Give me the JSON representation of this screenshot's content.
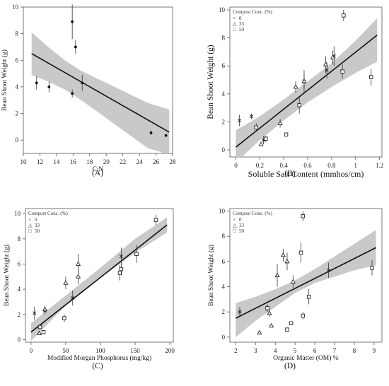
{
  "chart_data": [
    {
      "id": "A",
      "type": "scatter",
      "panel_label": "(A)",
      "xlabel": "C:N",
      "ylabel": "Bean Shoot Weight (g)",
      "xlim": [
        10,
        28
      ],
      "ylim": [
        -1,
        10
      ],
      "xticks": [
        10,
        12,
        14,
        16,
        18,
        20,
        22,
        24,
        26,
        28
      ],
      "yticks": [
        0,
        2,
        4,
        6,
        8,
        10
      ],
      "legend_title": "",
      "legend_entries": [],
      "series": [
        {
          "marker": "dot",
          "points": [
            {
              "x": 11.6,
              "y": 4.3,
              "err": 0.5
            },
            {
              "x": 13.1,
              "y": 4.0,
              "err": 0.4
            },
            {
              "x": 15.9,
              "y": 3.5,
              "err": 0.3
            },
            {
              "x": 15.9,
              "y": 8.9,
              "err": 1.3
            },
            {
              "x": 16.3,
              "y": 7.0,
              "err": 0.5
            },
            {
              "x": 17.1,
              "y": 4.3,
              "err": 0.6
            },
            {
              "x": 25.4,
              "y": 0.55,
              "err": 0.15
            },
            {
              "x": 27.2,
              "y": 0.35,
              "err": 0.1
            }
          ]
        }
      ],
      "fit": {
        "x": [
          11,
          27.6
        ],
        "y": [
          6.5,
          0.6
        ]
      },
      "band": {
        "x": [
          11,
          13,
          15,
          17,
          19,
          21,
          23,
          25,
          27.6
        ],
        "lower": [
          4.9,
          4.4,
          3.8,
          3.0,
          2.1,
          1.2,
          0.3,
          -0.6,
          -1.1
        ],
        "upper": [
          8.1,
          7.0,
          6.0,
          5.2,
          4.6,
          4.0,
          3.4,
          2.8,
          2.3
        ]
      }
    },
    {
      "id": "B",
      "type": "scatter",
      "panel_label": "(B)",
      "xlabel": "Soluble Salt Content (mmhos/cm)",
      "ylabel": "Bean Shoot Weight (g)",
      "xlim": [
        -0.05,
        1.22
      ],
      "ylim": [
        -0.5,
        10.2
      ],
      "xticks": [
        0,
        0.2,
        0.4,
        0.6,
        0.8,
        1,
        1.2
      ],
      "yticks": [
        0,
        2,
        4,
        6,
        8,
        10
      ],
      "legend_title": "Compost Conc. (%)",
      "legend_entries": [
        {
          "symbol": "×",
          "label": "0"
        },
        {
          "symbol": "△",
          "label": "33"
        },
        {
          "symbol": "□",
          "label": "50"
        }
      ],
      "series": [
        {
          "name": "0",
          "marker": "x",
          "points": [
            {
              "x": 0.03,
              "y": 2.1,
              "err": 0.4
            },
            {
              "x": 0.13,
              "y": 2.4,
              "err": 0.2
            },
            {
              "x": 0.23,
              "y": 0.7,
              "err": 0.3
            },
            {
              "x": 0.57,
              "y": 4.9,
              "err": 0.8
            },
            {
              "x": 0.76,
              "y": 5.7,
              "err": 0.6
            },
            {
              "x": 0.82,
              "y": 6.7,
              "err": 0.7
            }
          ]
        },
        {
          "name": "33",
          "marker": "triangle",
          "points": [
            {
              "x": 0.21,
              "y": 0.4,
              "err": 0.1
            },
            {
              "x": 0.37,
              "y": 1.9,
              "err": 0.3
            },
            {
              "x": 0.5,
              "y": 4.5,
              "err": 0.4
            },
            {
              "x": 0.57,
              "y": 4.9,
              "err": 0.5
            },
            {
              "x": 0.75,
              "y": 6.1,
              "err": 0.6
            },
            {
              "x": 0.81,
              "y": 6.6,
              "err": 0.5
            }
          ]
        },
        {
          "name": "50",
          "marker": "square",
          "points": [
            {
              "x": 0.17,
              "y": 1.6,
              "err": 0.3
            },
            {
              "x": 0.25,
              "y": 0.8,
              "err": 0.2
            },
            {
              "x": 0.42,
              "y": 1.1,
              "err": 0.1
            },
            {
              "x": 0.53,
              "y": 3.2,
              "err": 0.6
            },
            {
              "x": 0.89,
              "y": 5.6,
              "err": 0.5
            },
            {
              "x": 0.9,
              "y": 9.6,
              "err": 0.4
            },
            {
              "x": 1.13,
              "y": 5.2,
              "err": 0.6
            }
          ]
        }
      ],
      "fit": {
        "x": [
          0,
          1.18
        ],
        "y": [
          0.2,
          8.2
        ]
      },
      "band": {
        "x": [
          0,
          0.2,
          0.4,
          0.6,
          0.8,
          1.0,
          1.18
        ],
        "lower": [
          -0.9,
          0.7,
          2.1,
          3.4,
          4.5,
          5.5,
          6.3
        ],
        "upper": [
          1.4,
          2.4,
          3.6,
          4.9,
          6.2,
          7.8,
          9.4
        ]
      }
    },
    {
      "id": "C",
      "type": "scatter",
      "panel_label": "(C)",
      "xlabel": "Modified Morgan Phosphorus (mg/kg)",
      "ylabel": "Bean Shoot Weight (g)",
      "xlim": [
        -8,
        205
      ],
      "ylim": [
        -0.2,
        10.4
      ],
      "xticks": [
        0,
        50,
        100,
        150,
        200
      ],
      "yticks": [
        0,
        2,
        4,
        6,
        8,
        10
      ],
      "legend_title": "Compost Conc. (%)",
      "legend_entries": [
        {
          "symbol": "×",
          "label": "0"
        },
        {
          "symbol": "△",
          "label": "33"
        },
        {
          "symbol": "□",
          "label": "50"
        }
      ],
      "series": [
        {
          "name": "0",
          "marker": "x",
          "points": [
            {
              "x": 5,
              "y": 2.1,
              "err": 0.5
            },
            {
              "x": 20,
              "y": 2.3,
              "err": 0.3
            },
            {
              "x": 60,
              "y": 3.3,
              "err": 0.6
            },
            {
              "x": 130,
              "y": 6.6,
              "err": 0.7
            }
          ]
        },
        {
          "name": "33",
          "marker": "triangle",
          "points": [
            {
              "x": 12,
              "y": 0.5,
              "err": 0.1
            },
            {
              "x": 20,
              "y": 2.4,
              "err": 0.3
            },
            {
              "x": 50,
              "y": 4.5,
              "err": 0.5
            },
            {
              "x": 68,
              "y": 5.0,
              "err": 0.6
            },
            {
              "x": 68,
              "y": 6.0,
              "err": 0.8
            }
          ]
        },
        {
          "name": "50",
          "marker": "square",
          "points": [
            {
              "x": 13,
              "y": 1.0,
              "err": 0.2
            },
            {
              "x": 18,
              "y": 0.6,
              "err": 0.1
            },
            {
              "x": 48,
              "y": 1.7,
              "err": 0.3
            },
            {
              "x": 128,
              "y": 5.3,
              "err": 0.6
            },
            {
              "x": 130,
              "y": 5.6,
              "err": 0.5
            },
            {
              "x": 152,
              "y": 6.8,
              "err": 0.7
            },
            {
              "x": 180,
              "y": 9.5,
              "err": 0.4
            }
          ]
        }
      ],
      "fit": {
        "x": [
          0,
          196
        ],
        "y": [
          0.6,
          9.1
        ]
      },
      "band": {
        "x": [
          0,
          50,
          100,
          150,
          196
        ],
        "lower": [
          -0.1,
          2.7,
          4.9,
          6.9,
          8.5
        ],
        "upper": [
          1.3,
          3.5,
          5.7,
          8.0,
          9.7
        ]
      }
    },
    {
      "id": "D",
      "type": "scatter",
      "panel_label": "(D)",
      "xlabel": "Organic Matter (OM) %",
      "ylabel": "Bean Shoot Weight (g)",
      "xlim": [
        1.7,
        9.4
      ],
      "ylim": [
        -0.4,
        10.2
      ],
      "xticks": [
        2,
        3,
        4,
        5,
        6,
        7,
        8,
        9
      ],
      "yticks": [
        0,
        2,
        4,
        6,
        8,
        10
      ],
      "legend_title": "Compost Conc. (%)",
      "legend_entries": [
        {
          "symbol": "×",
          "label": "0"
        },
        {
          "symbol": "△",
          "label": "33"
        },
        {
          "symbol": "□",
          "label": "50"
        }
      ],
      "series": [
        {
          "name": "0",
          "marker": "x",
          "points": [
            {
              "x": 2.2,
              "y": 2.0,
              "err": 0.4
            },
            {
              "x": 3.6,
              "y": 2.3,
              "err": 0.3
            },
            {
              "x": 6.7,
              "y": 5.3,
              "err": 0.6
            }
          ]
        },
        {
          "name": "33",
          "marker": "triangle",
          "points": [
            {
              "x": 3.2,
              "y": 0.35,
              "err": 0.05
            },
            {
              "x": 3.7,
              "y": 1.9,
              "err": 0.3
            },
            {
              "x": 3.8,
              "y": 0.9,
              "err": 0.1
            },
            {
              "x": 4.1,
              "y": 4.9,
              "err": 0.9
            },
            {
              "x": 4.4,
              "y": 6.5,
              "err": 0.5
            },
            {
              "x": 4.6,
              "y": 6.0,
              "err": 0.7
            },
            {
              "x": 4.9,
              "y": 4.4,
              "err": 0.5
            }
          ]
        },
        {
          "name": "50",
          "marker": "square",
          "points": [
            {
              "x": 3.6,
              "y": 2.3,
              "err": 0.3
            },
            {
              "x": 4.6,
              "y": 0.6,
              "err": 0.1
            },
            {
              "x": 4.8,
              "y": 1.1,
              "err": 0.1
            },
            {
              "x": 5.3,
              "y": 6.7,
              "err": 0.8
            },
            {
              "x": 5.4,
              "y": 9.6,
              "err": 0.4
            },
            {
              "x": 5.4,
              "y": 1.7,
              "err": 0.3
            },
            {
              "x": 5.7,
              "y": 3.2,
              "err": 0.6
            },
            {
              "x": 8.9,
              "y": 5.5,
              "err": 0.6
            }
          ]
        }
      ],
      "fit": {
        "x": [
          2,
          9.1
        ],
        "y": [
          1.5,
          7.1
        ]
      },
      "band": {
        "x": [
          2,
          3,
          4,
          5,
          6,
          7,
          8,
          9.1
        ],
        "lower": [
          0.0,
          1.3,
          2.4,
          3.5,
          4.3,
          4.8,
          5.3,
          5.7
        ],
        "upper": [
          2.7,
          3.2,
          3.8,
          4.5,
          5.4,
          6.4,
          7.4,
          8.5
        ]
      }
    }
  ]
}
